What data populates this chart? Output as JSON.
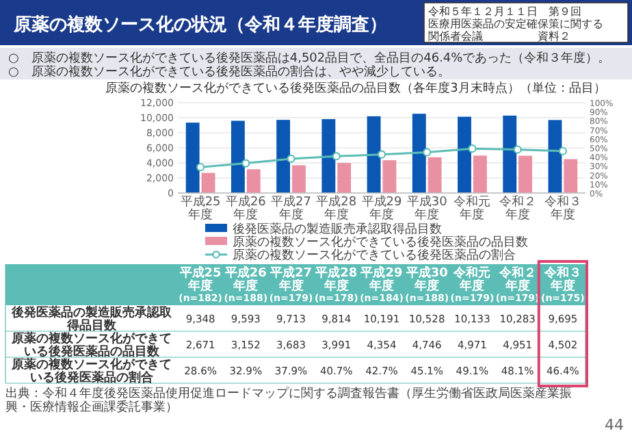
{
  "chart_data": {
    "type": "bar",
    "title": "原薬の複数ソース化の状況（令和４年度調査）",
    "subtitle": "原薬の複数ソース化ができている後発医薬品の品目数（各年度3月末時点）（単位：品目）",
    "annotations": [
      "令和５年１２月１１日　第９回",
      "医療用医薬品の安定確保策に関する",
      "関係者会議　　　　　資料２",
      "○　原薬の複数ソース化ができている後発医薬品は4,502品目で、全品目の46.4%であった（令和３年度）。",
      "○　原薬の複数ソース化ができている後発医薬品の割合は、やや減少している。",
      "(n=182)",
      "(n=188)",
      "(n=179)",
      "(n=178)",
      "(n=184)",
      "(n=188)",
      "(n=179)",
      "(n=179)",
      "(n=175)",
      "出典：令和４年度後発医薬品使用促進ロードマップに関する調査報告書（厚生労働省医政局医薬産業振興・医療情報企画課委託事業）",
      "44"
    ],
    "categories": [
      "平成25年度",
      "平成26年度",
      "平成27年度",
      "平成28年度",
      "平成29年度",
      "平成30年度",
      "令和元年度",
      "令和２年度",
      "令和３年度"
    ],
    "series": [
      {
        "name": "後発医薬品の製造販売承認取得品目数",
        "color": "#0a58b4",
        "values": [
          9348,
          9593,
          9713,
          9814,
          10191,
          10528,
          10133,
          10283,
          9695
        ],
        "value_labels": [
          "9,348",
          "9,593",
          "9,713",
          "9,814",
          "10,191",
          "10,528",
          "10,133",
          "10,283",
          "9,695"
        ]
      },
      {
        "name": "原薬の複数ソース化ができている後発医薬品の品目数",
        "color": "#e991a3",
        "values": [
          2671,
          3152,
          3683,
          3991,
          4354,
          4746,
          4971,
          4951,
          4502
        ],
        "value_labels": [
          "2,671",
          "3,152",
          "3,683",
          "3,991",
          "4,354",
          "4,746",
          "4,971",
          "4,951",
          "4,502"
        ]
      },
      {
        "name": "原薬の複数ソース化ができている後発医薬品の割合",
        "type": "line",
        "axis": "y2",
        "color": "#5bbdb5",
        "marker": "circle",
        "values": [
          28.6,
          32.9,
          37.9,
          40.7,
          42.7,
          45.1,
          49.1,
          48.1,
          46.4
        ],
        "value_labels": [
          "28.6%",
          "32.9%",
          "37.9%",
          "40.7%",
          "42.7%",
          "45.1%",
          "49.1%",
          "48.1%",
          "46.4%"
        ]
      }
    ],
    "ylim": [
      0,
      12000
    ],
    "yticks": [
      0,
      {
        "value": 2000,
        "label": "2,000"
      },
      {
        "value": 4000,
        "label": "4,000"
      },
      {
        "value": 6000,
        "label": "6,000"
      },
      {
        "value": 8000,
        "label": "8,000"
      },
      {
        "value": 10000,
        "label": "10,000"
      },
      {
        "value": 12000,
        "label": "12,000"
      }
    ],
    "y2lim": [
      0,
      100
    ],
    "y2ticks": [
      {
        "value": 0,
        "label": "0%"
      },
      {
        "value": 10,
        "label": "10%"
      },
      {
        "value": 20,
        "label": "20%"
      },
      {
        "value": 30,
        "label": "30%"
      },
      {
        "value": 40,
        "label": "40%"
      },
      {
        "value": 50,
        "label": "50%"
      },
      {
        "value": 60,
        "label": "60%"
      },
      {
        "value": 70,
        "label": "70%"
      },
      {
        "value": 80,
        "label": "80%"
      },
      {
        "value": 90,
        "label": "90%"
      },
      {
        "value": 100,
        "label": "100%"
      }
    ],
    "grid": "y",
    "legend": "bottom"
  }
}
